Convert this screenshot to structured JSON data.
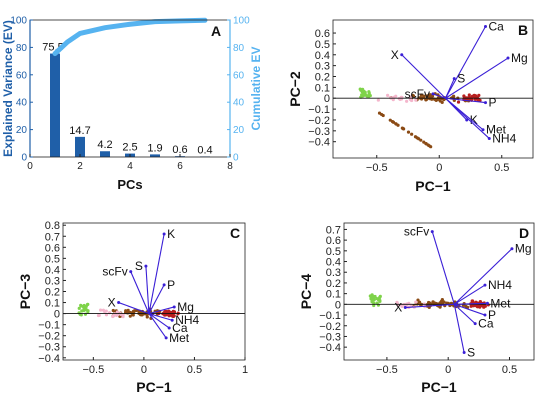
{
  "chart_data": [
    {
      "panel": "A",
      "type": "bar",
      "xlabel": "PCs",
      "ylabel": "Explained Variance (EV)",
      "y2label": "Cumulative EV",
      "xlim": [
        0,
        8
      ],
      "ylim": [
        0,
        100
      ],
      "y2lim": [
        0,
        100
      ],
      "xticks": [
        0,
        2,
        4,
        6,
        8
      ],
      "yticks": [
        0,
        20,
        40,
        60,
        80,
        100
      ],
      "y2ticks": [
        0,
        20,
        40,
        60,
        80,
        100
      ],
      "categories": [
        1,
        2,
        3,
        4,
        5,
        6,
        7
      ],
      "values": [
        75.5,
        14.7,
        4.2,
        2.5,
        1.9,
        0.6,
        0.4
      ],
      "data_labels": [
        "75.5",
        "14.7",
        "4.2",
        "2.5",
        "1.9",
        "0.6",
        "0.4"
      ],
      "cumulative": {
        "x": [
          1,
          1.5,
          2,
          3,
          4,
          5,
          6,
          7
        ],
        "y": [
          75.5,
          84,
          90.2,
          94.4,
          96.9,
          98.8,
          99.4,
          99.8
        ]
      },
      "colors": {
        "bars": "#1f5fa8",
        "axis": "#1f5fa8",
        "cumulative": "#56b3f0"
      }
    },
    {
      "panel": "B",
      "type": "scatter",
      "xlabel": "PC−1",
      "ylabel": "PC−2",
      "xlim": [
        -0.85,
        0.75
      ],
      "ylim": [
        -0.55,
        0.72
      ],
      "xticks": [
        -0.5,
        0,
        0.5
      ],
      "yticks": [
        -0.4,
        -0.3,
        -0.2,
        -0.1,
        0,
        0.1,
        0.2,
        0.3,
        0.4,
        0.5,
        0.6
      ],
      "origin": [
        0.05,
        0.0
      ],
      "vectors": [
        {
          "label": "Ca",
          "x": 0.37,
          "y": 0.66
        },
        {
          "label": "Mg",
          "x": 0.55,
          "y": 0.37
        },
        {
          "label": "X",
          "x": -0.3,
          "y": 0.4
        },
        {
          "label": "S",
          "x": 0.12,
          "y": 0.18
        },
        {
          "label": "scFv",
          "x": -0.05,
          "y": 0.04
        },
        {
          "label": "P",
          "x": 0.37,
          "y": -0.04
        },
        {
          "label": "K",
          "x": 0.22,
          "y": -0.2
        },
        {
          "label": "Met",
          "x": 0.35,
          "y": -0.29
        },
        {
          "label": "NH4",
          "x": 0.4,
          "y": -0.37
        }
      ]
    },
    {
      "panel": "C",
      "type": "scatter",
      "xlabel": "PC−1",
      "ylabel": "PC−3",
      "xlim": [
        -0.8,
        1.0
      ],
      "ylim": [
        -0.42,
        0.82
      ],
      "xticks": [
        -0.5,
        0,
        0.5,
        1
      ],
      "yticks": [
        -0.4,
        -0.3,
        -0.2,
        -0.1,
        0,
        0.1,
        0.2,
        0.3,
        0.4,
        0.5,
        0.6,
        0.7,
        0.8
      ],
      "origin": [
        0.05,
        0.0
      ],
      "vectors": [
        {
          "label": "K",
          "x": 0.2,
          "y": 0.72
        },
        {
          "label": "S",
          "x": 0.02,
          "y": 0.43
        },
        {
          "label": "scFv",
          "x": -0.13,
          "y": 0.38
        },
        {
          "label": "P",
          "x": 0.2,
          "y": 0.26
        },
        {
          "label": "X",
          "x": -0.25,
          "y": 0.1
        },
        {
          "label": "Mg",
          "x": 0.3,
          "y": 0.06
        },
        {
          "label": "NH4",
          "x": 0.28,
          "y": -0.06
        },
        {
          "label": "Ca",
          "x": 0.25,
          "y": -0.13
        },
        {
          "label": "Met",
          "x": 0.22,
          "y": -0.22
        }
      ]
    },
    {
      "panel": "D",
      "type": "scatter",
      "xlabel": "PC−1",
      "ylabel": "PC−4",
      "xlim": [
        -0.85,
        0.7
      ],
      "ylim": [
        -0.52,
        0.76
      ],
      "xticks": [
        -0.5,
        0,
        0.5
      ],
      "yticks": [
        -0.4,
        -0.3,
        -0.2,
        -0.1,
        0,
        0.1,
        0.2,
        0.3,
        0.4,
        0.5,
        0.6,
        0.7
      ],
      "origin": [
        0.05,
        0.0
      ],
      "vectors": [
        {
          "label": "scFv",
          "x": -0.13,
          "y": 0.68
        },
        {
          "label": "Mg",
          "x": 0.52,
          "y": 0.52
        },
        {
          "label": "NH4",
          "x": 0.3,
          "y": 0.18
        },
        {
          "label": "Met",
          "x": 0.32,
          "y": 0.01
        },
        {
          "label": "X",
          "x": -0.35,
          "y": -0.03
        },
        {
          "label": "P",
          "x": 0.3,
          "y": -0.1
        },
        {
          "label": "Ca",
          "x": 0.22,
          "y": -0.18
        },
        {
          "label": "S",
          "x": 0.13,
          "y": -0.45
        }
      ]
    }
  ],
  "panels": {
    "A": {
      "letter": "A",
      "xlabel": "PCs",
      "ylabel": "Explained Variance (EV)",
      "y2label": "Cumulative EV"
    },
    "B": {
      "letter": "B",
      "xlabel": "PC−1",
      "ylabel": "PC−2"
    },
    "C": {
      "letter": "C",
      "xlabel": "PC−1",
      "ylabel": "PC−3"
    },
    "D": {
      "letter": "D",
      "xlabel": "PC−1",
      "ylabel": "PC−4"
    }
  },
  "colors": {
    "vector": "#3a1fd6",
    "points_red": "#b81e1e",
    "points_brown": "#8a4a14",
    "points_green": "#7fd34a",
    "points_pink": "#f4b6cc"
  }
}
